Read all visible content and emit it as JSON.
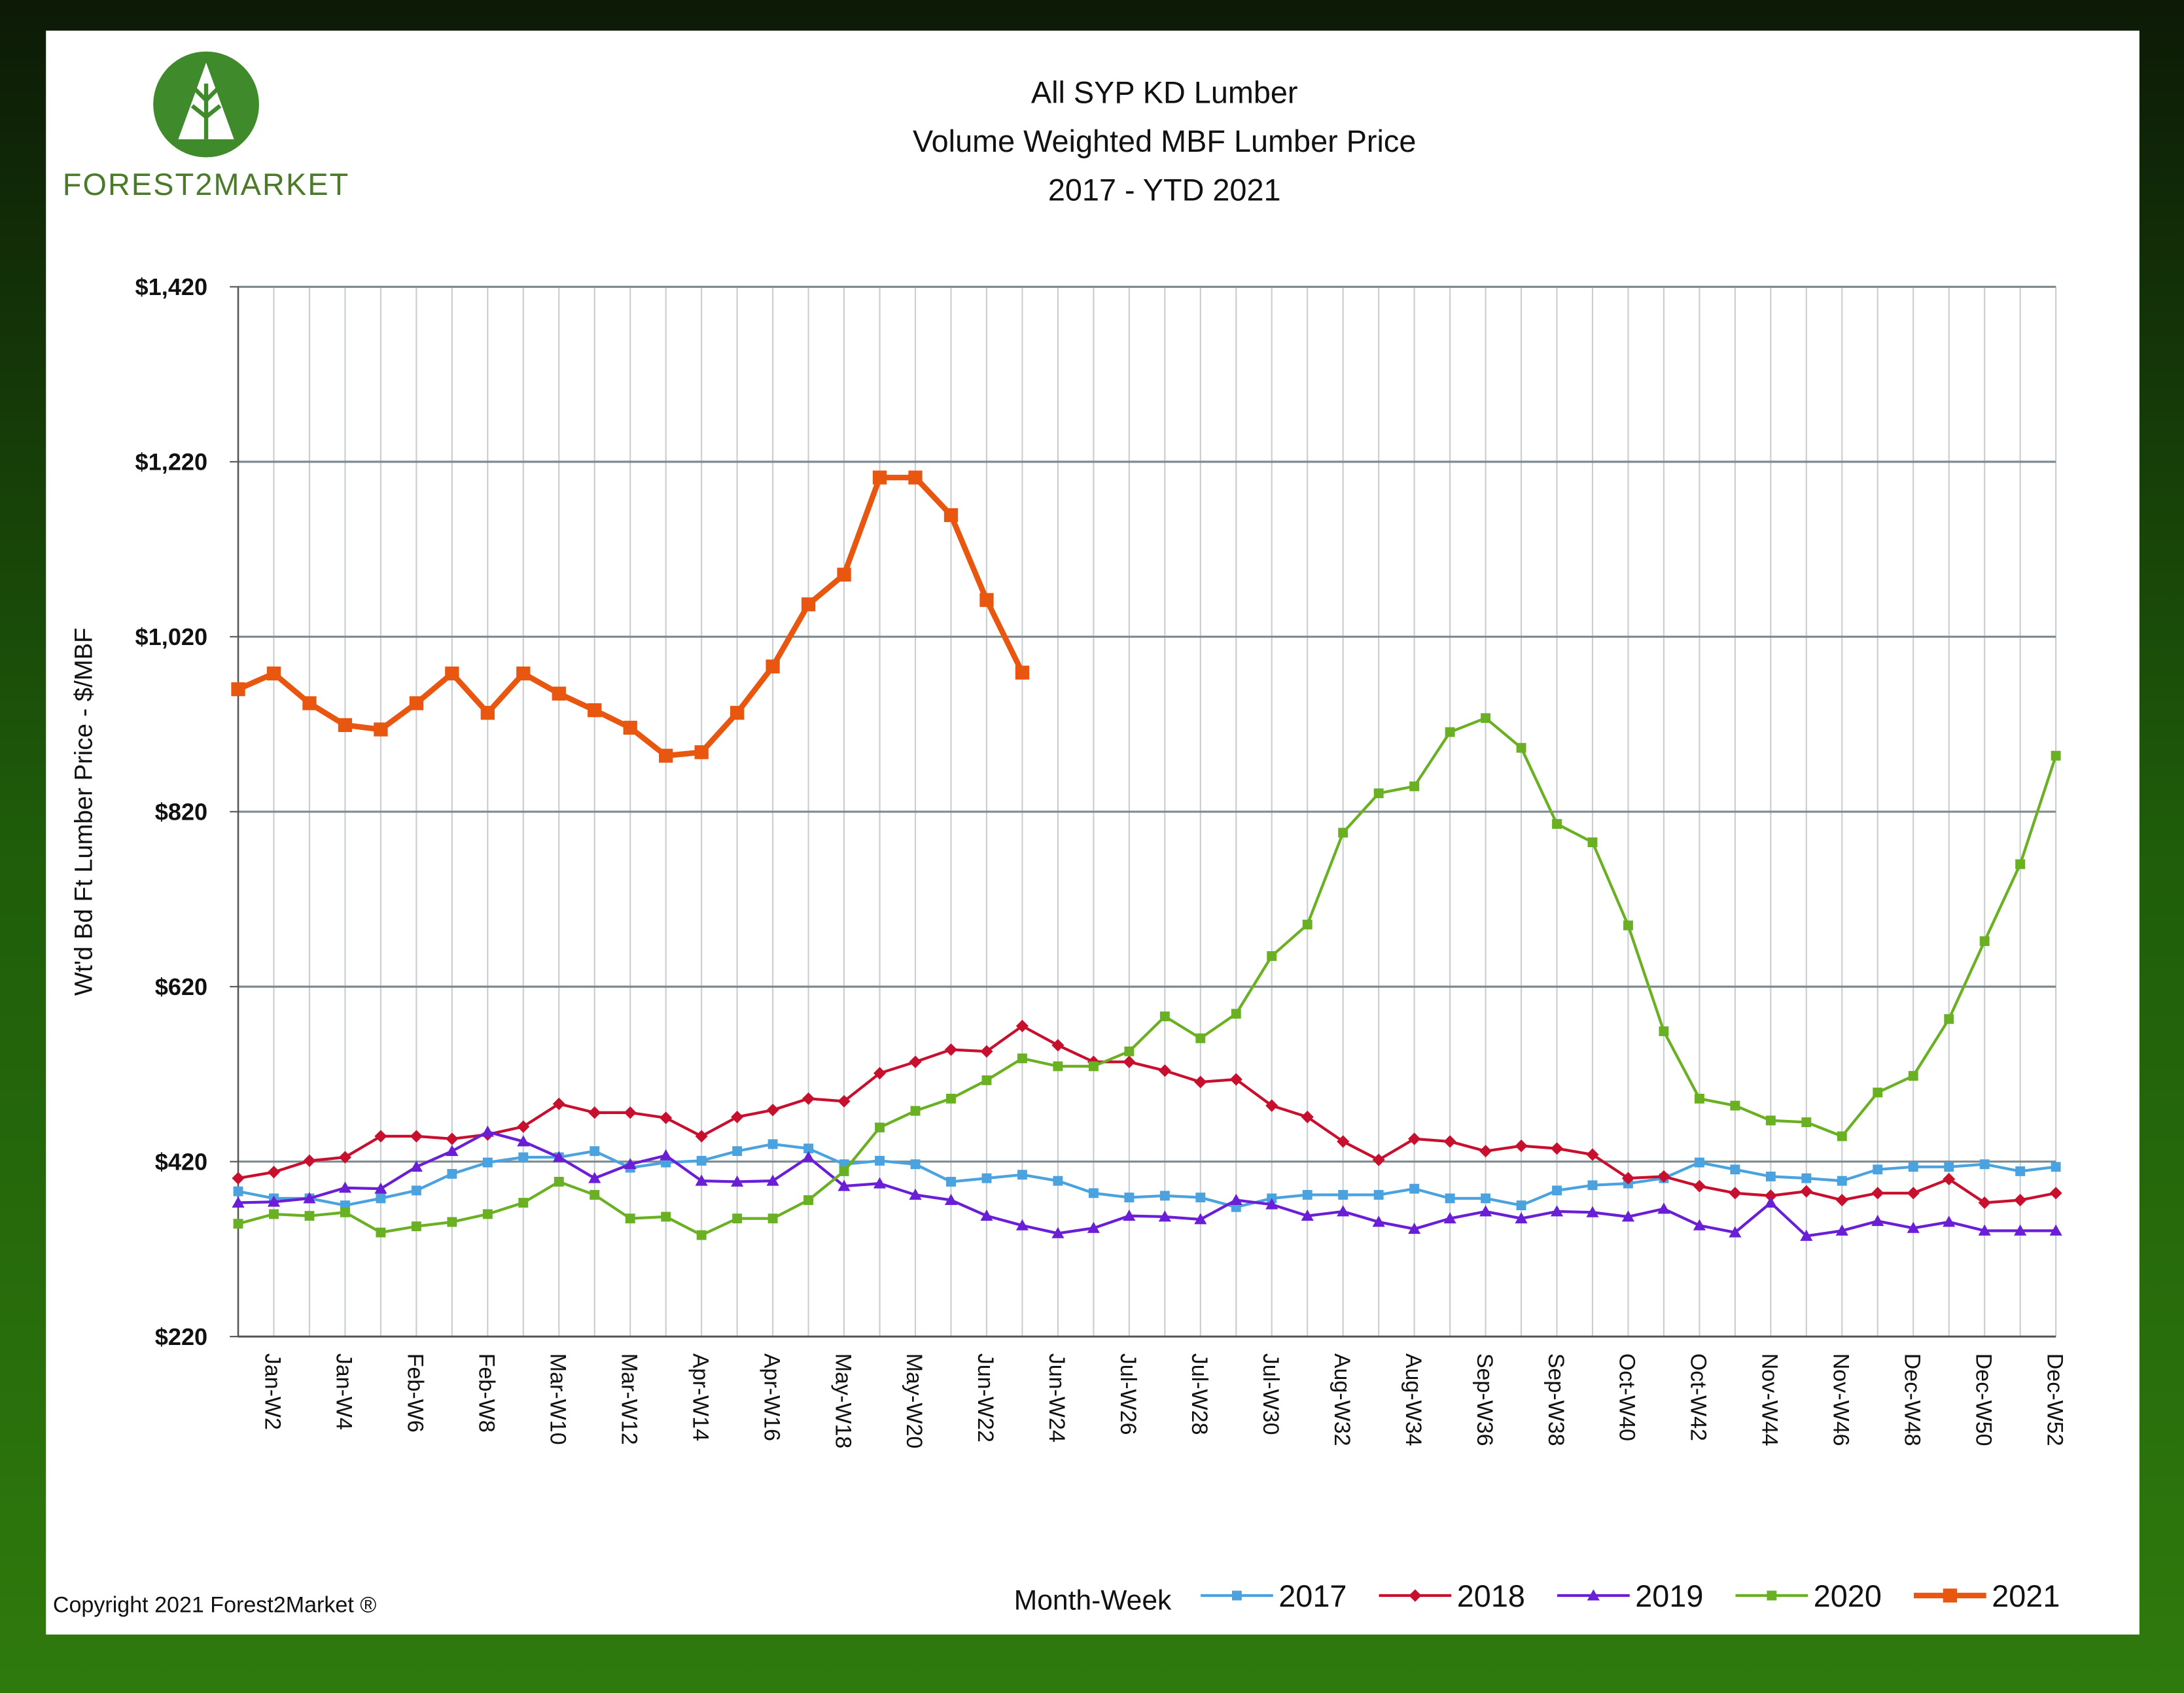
{
  "logo_text": "FOREST2MARKET",
  "copyright": "Copyright 2021 Forest2Market ®",
  "chart_data": {
    "type": "line",
    "title": "All SYP KD Lumber",
    "subtitle": [
      "Volume Weighted MBF Lumber Price",
      "2017 - YTD 2021"
    ],
    "x_label": "Month-Week",
    "y_label": "Wt'd Bd Ft Lumber Price - $/MBF",
    "categories": [
      null,
      "Jan-W2",
      null,
      "Jan-W4",
      null,
      "Feb-W6",
      null,
      "Feb-W8",
      null,
      "Mar-W10",
      null,
      "Mar-W12",
      null,
      "Apr-W14",
      null,
      "Apr-W16",
      null,
      "May-W18",
      null,
      "May-W20",
      null,
      "Jun-W22",
      null,
      "Jun-W24",
      null,
      "Jul-W26",
      null,
      "Jul-W28",
      null,
      "Jul-W30",
      null,
      "Aug-W32",
      null,
      "Aug-W34",
      null,
      "Sep-W36",
      null,
      "Sep-W38",
      null,
      "Oct-W40",
      null,
      "Oct-W42",
      null,
      "Nov-W44",
      null,
      "Nov-W46",
      null,
      "Dec-W48",
      null,
      "Dec-W50",
      null,
      "Dec-W52"
    ],
    "ylim": [
      220,
      1420
    ],
    "yticks": [
      {
        "value": 220,
        "label": "$220"
      },
      {
        "value": 420,
        "label": "$420"
      },
      {
        "value": 620,
        "label": "$620"
      },
      {
        "value": 820,
        "label": "$820"
      },
      {
        "value": 1020,
        "label": "$1,020"
      },
      {
        "value": 1220,
        "label": "$1,220"
      },
      {
        "value": 1420,
        "label": "$1,420"
      }
    ],
    "grid": true,
    "legend": "bottom",
    "series": [
      {
        "name": "2017",
        "color": "#4aa3df",
        "marker": "square",
        "values": [
          386,
          378,
          378,
          370,
          378,
          387,
          406,
          419,
          425,
          425,
          432,
          413,
          419,
          421,
          432,
          440,
          435,
          417,
          421,
          417,
          397,
          401,
          405,
          398,
          384,
          379,
          381,
          379,
          368,
          378,
          382,
          382,
          382,
          389,
          378,
          378,
          370,
          387,
          393,
          395,
          401,
          419,
          411,
          403,
          401,
          398,
          411,
          414,
          414,
          417,
          409,
          414
        ]
      },
      {
        "name": "2018",
        "color": "#c8102e",
        "marker": "diamond",
        "values": [
          401,
          408,
          421,
          425,
          449,
          449,
          446,
          451,
          460,
          486,
          476,
          476,
          470,
          449,
          471,
          479,
          492,
          489,
          521,
          534,
          548,
          546,
          575,
          553,
          534,
          534,
          524,
          511,
          514,
          484,
          471,
          443,
          422,
          446,
          443,
          432,
          438,
          435,
          428,
          401,
          403,
          392,
          384,
          381,
          386,
          376,
          384,
          384,
          400,
          373,
          376,
          384
        ]
      },
      {
        "name": "2019",
        "color": "#6a1fd6",
        "marker": "triangle",
        "values": [
          373,
          374,
          378,
          390,
          389,
          414,
          432,
          454,
          443,
          425,
          401,
          417,
          427,
          398,
          397,
          398,
          425,
          392,
          395,
          382,
          376,
          358,
          347,
          338,
          344,
          358,
          357,
          354,
          376,
          371,
          358,
          363,
          351,
          343,
          355,
          363,
          355,
          363,
          362,
          357,
          366,
          347,
          339,
          373,
          335,
          341,
          352,
          344,
          351,
          341,
          341,
          341
        ]
      },
      {
        "name": "2020",
        "color": "#6ab023",
        "marker": "square",
        "values": [
          349,
          360,
          358,
          362,
          339,
          346,
          351,
          360,
          373,
          397,
          382,
          355,
          357,
          336,
          355,
          355,
          376,
          409,
          459,
          478,
          492,
          513,
          538,
          529,
          529,
          546,
          586,
          561,
          589,
          655,
          691,
          796,
          841,
          849,
          911,
          927,
          893,
          806,
          785,
          690,
          569,
          492,
          484,
          467,
          465,
          449,
          499,
          518,
          583,
          672,
          760,
          884
        ]
      },
      {
        "name": "2021",
        "color": "#e8560f",
        "marker": "bigsquare",
        "values": [
          960,
          978,
          944,
          919,
          914,
          944,
          978,
          933,
          978,
          955,
          936,
          916,
          884,
          888,
          933,
          986,
          1057,
          1091,
          1202,
          1202,
          1159,
          1062,
          979,
          null,
          null,
          null,
          null,
          null,
          null,
          null,
          null,
          null,
          null,
          null,
          null,
          null,
          null,
          null,
          null,
          null,
          null,
          null,
          null,
          null,
          null,
          null,
          null,
          null,
          null,
          null,
          null,
          null
        ]
      }
    ]
  }
}
